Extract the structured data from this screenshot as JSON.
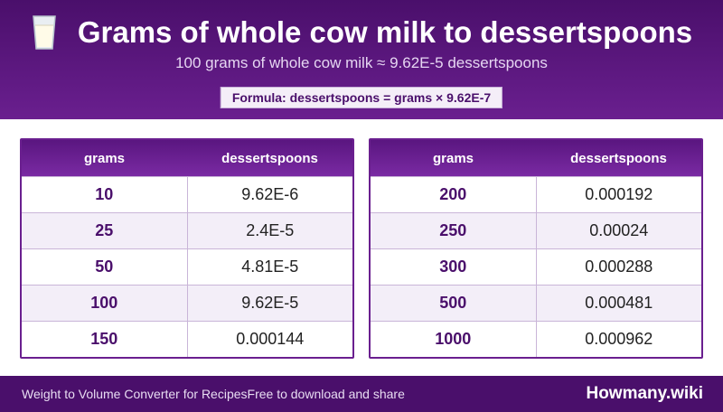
{
  "header": {
    "icon": "milk-glass-icon",
    "title": "Grams of whole cow milk to dessertspoons",
    "subtitle": "100 grams of whole cow milk ≈ 9.62E-5 dessertspoons",
    "formula": "Formula: dessertspoons = grams × 9.62E-7"
  },
  "tables": [
    {
      "headers": [
        "grams",
        "dessertspoons"
      ],
      "rows": [
        {
          "grams": "10",
          "value": "9.62E-6"
        },
        {
          "grams": "25",
          "value": "2.4E-5"
        },
        {
          "grams": "50",
          "value": "4.81E-5"
        },
        {
          "grams": "100",
          "value": "9.62E-5"
        },
        {
          "grams": "150",
          "value": "0.000144"
        }
      ]
    },
    {
      "headers": [
        "grams",
        "dessertspoons"
      ],
      "rows": [
        {
          "grams": "200",
          "value": "0.000192"
        },
        {
          "grams": "250",
          "value": "0.00024"
        },
        {
          "grams": "300",
          "value": "0.000288"
        },
        {
          "grams": "500",
          "value": "0.000481"
        },
        {
          "grams": "1000",
          "value": "0.000962"
        }
      ]
    }
  ],
  "footer": {
    "left_text": "Weight to Volume Converter for RecipesFree to download and share",
    "brand": "Howmany.wiki"
  },
  "colors": {
    "header_bg": "#4a0f6b",
    "accent": "#6a1f8f",
    "row_alt": "#f3eef8"
  }
}
